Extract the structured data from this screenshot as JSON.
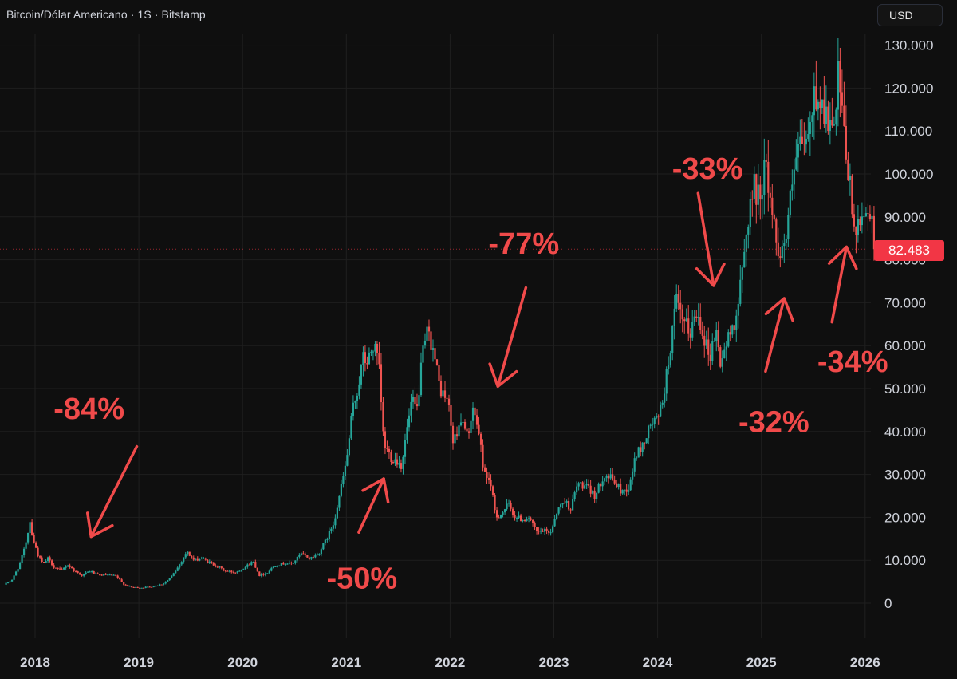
{
  "header": {
    "title": "Bitcoin/Dólar Americano · 1S · Bitstamp",
    "currency_button": "USD"
  },
  "price_tag": {
    "value_label": "82.483",
    "color": "#f23645"
  },
  "colors": {
    "background": "#0f0f0f",
    "up_candle": "#26a69a",
    "down_candle": "#ef5350",
    "annotation": "#f04a4a",
    "grid": "#1f1f1f"
  },
  "chart_data": {
    "type": "candlestick",
    "instrument": "Bitcoin/Dólar Americano",
    "interval": "1S",
    "exchange": "Bitstamp",
    "ylim": [
      -3500,
      138000
    ],
    "xlim": [
      2017.72,
      2026.3
    ],
    "y_ticks": [
      0,
      10000,
      20000,
      30000,
      40000,
      50000,
      60000,
      70000,
      80000,
      90000,
      100000,
      110000,
      120000,
      130000
    ],
    "y_tick_labels": [
      "0",
      "10.000",
      "20.000",
      "30.000",
      "40.000",
      "50.000",
      "60.000",
      "70.000",
      "80.000",
      "90.000",
      "100.000",
      "110.000",
      "120.000",
      "130.000"
    ],
    "x_ticks": [
      2018,
      2019,
      2020,
      2021,
      2022,
      2023,
      2024,
      2025,
      2026
    ],
    "x_tick_labels": [
      "2018",
      "2019",
      "2020",
      "2021",
      "2022",
      "2023",
      "2024",
      "2025",
      "2026"
    ],
    "grid": true,
    "last_price": 82483,
    "last_price_label": "82.483",
    "price_path": [
      [
        2017.72,
        4300
      ],
      [
        2017.8,
        5500
      ],
      [
        2017.87,
        9000
      ],
      [
        2017.92,
        13000
      ],
      [
        2017.97,
        19000
      ],
      [
        2018.0,
        15000
      ],
      [
        2018.05,
        11000
      ],
      [
        2018.1,
        9000
      ],
      [
        2018.14,
        10500
      ],
      [
        2018.2,
        8500
      ],
      [
        2018.27,
        7500
      ],
      [
        2018.33,
        9000
      ],
      [
        2018.4,
        7500
      ],
      [
        2018.47,
        6500
      ],
      [
        2018.55,
        7500
      ],
      [
        2018.62,
        6500
      ],
      [
        2018.7,
        6600
      ],
      [
        2018.8,
        6300
      ],
      [
        2018.87,
        4500
      ],
      [
        2018.95,
        3700
      ],
      [
        2019.05,
        3600
      ],
      [
        2019.15,
        3900
      ],
      [
        2019.25,
        4500
      ],
      [
        2019.33,
        6000
      ],
      [
        2019.4,
        8500
      ],
      [
        2019.48,
        12000
      ],
      [
        2019.55,
        10000
      ],
      [
        2019.62,
        10500
      ],
      [
        2019.7,
        9500
      ],
      [
        2019.78,
        8500
      ],
      [
        2019.85,
        7500
      ],
      [
        2019.95,
        7200
      ],
      [
        2020.05,
        8500
      ],
      [
        2020.12,
        9800
      ],
      [
        2020.18,
        6500
      ],
      [
        2020.25,
        7000
      ],
      [
        2020.33,
        8800
      ],
      [
        2020.42,
        9300
      ],
      [
        2020.5,
        9200
      ],
      [
        2020.58,
        11500
      ],
      [
        2020.67,
        10500
      ],
      [
        2020.75,
        11500
      ],
      [
        2020.83,
        15000
      ],
      [
        2020.9,
        19000
      ],
      [
        2020.96,
        26000
      ],
      [
        2021.02,
        33000
      ],
      [
        2021.08,
        45000
      ],
      [
        2021.13,
        50000
      ],
      [
        2021.18,
        57000
      ],
      [
        2021.22,
        56000
      ],
      [
        2021.28,
        60000
      ],
      [
        2021.33,
        56000
      ],
      [
        2021.38,
        37000
      ],
      [
        2021.45,
        34000
      ],
      [
        2021.52,
        33000
      ],
      [
        2021.55,
        32000
      ],
      [
        2021.6,
        40000
      ],
      [
        2021.65,
        47000
      ],
      [
        2021.7,
        45000
      ],
      [
        2021.75,
        57000
      ],
      [
        2021.8,
        63000
      ],
      [
        2021.85,
        60000
      ],
      [
        2021.92,
        50000
      ],
      [
        2022.0,
        47000
      ],
      [
        2022.05,
        37000
      ],
      [
        2022.12,
        43000
      ],
      [
        2022.18,
        39000
      ],
      [
        2022.25,
        45000
      ],
      [
        2022.3,
        39000
      ],
      [
        2022.35,
        30000
      ],
      [
        2022.4,
        29000
      ],
      [
        2022.46,
        20000
      ],
      [
        2022.52,
        21000
      ],
      [
        2022.58,
        23000
      ],
      [
        2022.65,
        20000
      ],
      [
        2022.72,
        19500
      ],
      [
        2022.78,
        20000
      ],
      [
        2022.85,
        16500
      ],
      [
        2022.92,
        16800
      ],
      [
        2022.99,
        16600
      ],
      [
        2023.04,
        21000
      ],
      [
        2023.12,
        24000
      ],
      [
        2023.18,
        22000
      ],
      [
        2023.25,
        28000
      ],
      [
        2023.33,
        27000
      ],
      [
        2023.42,
        25000
      ],
      [
        2023.5,
        30000
      ],
      [
        2023.58,
        29000
      ],
      [
        2023.67,
        26000
      ],
      [
        2023.75,
        27000
      ],
      [
        2023.8,
        34000
      ],
      [
        2023.88,
        37000
      ],
      [
        2023.96,
        42000
      ],
      [
        2024.03,
        43000
      ],
      [
        2024.1,
        52000
      ],
      [
        2024.17,
        65000
      ],
      [
        2024.2,
        70000
      ],
      [
        2024.25,
        66000
      ],
      [
        2024.33,
        63000
      ],
      [
        2024.4,
        68000
      ],
      [
        2024.45,
        64000
      ],
      [
        2024.52,
        57000
      ],
      [
        2024.58,
        64000
      ],
      [
        2024.62,
        56000
      ],
      [
        2024.68,
        60000
      ],
      [
        2024.75,
        65000
      ],
      [
        2024.8,
        70000
      ],
      [
        2024.85,
        80000
      ],
      [
        2024.9,
        92000
      ],
      [
        2024.95,
        97000
      ],
      [
        2025.0,
        94000
      ],
      [
        2025.05,
        102000
      ],
      [
        2025.1,
        96000
      ],
      [
        2025.15,
        86000
      ],
      [
        2025.2,
        82000
      ],
      [
        2025.25,
        84000
      ],
      [
        2025.3,
        94000
      ],
      [
        2025.36,
        104000
      ],
      [
        2025.42,
        107000
      ],
      [
        2025.48,
        108000
      ],
      [
        2025.52,
        118000
      ],
      [
        2025.58,
        118000
      ],
      [
        2025.62,
        115000
      ],
      [
        2025.68,
        111000
      ],
      [
        2025.72,
        109000
      ],
      [
        2025.76,
        123000
      ],
      [
        2025.8,
        112000
      ],
      [
        2025.84,
        104000
      ],
      [
        2025.88,
        95000
      ],
      [
        2025.92,
        86000
      ],
      [
        2025.96,
        87000
      ],
      [
        2026.0,
        91000
      ],
      [
        2026.04,
        93000
      ],
      [
        2026.08,
        89000
      ],
      [
        2026.1,
        82483
      ]
    ],
    "annotations": [
      {
        "label": "-84%",
        "x": 2018.52,
        "y": 45500,
        "arrow_from": [
          2018.98,
          36500
        ],
        "arrow_to": [
          2018.54,
          15500
        ]
      },
      {
        "label": "-50%",
        "x": 2021.15,
        "y": 6000,
        "arrow_from": [
          2021.12,
          16500
        ],
        "arrow_to": [
          2021.36,
          29000
        ]
      },
      {
        "label": "-77%",
        "x": 2022.71,
        "y": 84000,
        "arrow_from": [
          2022.73,
          73500
        ],
        "arrow_to": [
          2022.46,
          50500
        ]
      },
      {
        "label": "-33%",
        "x": 2024.48,
        "y": 101500,
        "arrow_from": [
          2024.39,
          95500
        ],
        "arrow_to": [
          2024.54,
          74000
        ]
      },
      {
        "label": "-32%",
        "x": 2025.12,
        "y": 42500,
        "arrow_from": [
          2025.04,
          54000
        ],
        "arrow_to": [
          2025.22,
          71000
        ]
      },
      {
        "label": "-34%",
        "x": 2025.88,
        "y": 56500,
        "arrow_from": [
          2025.68,
          65500
        ],
        "arrow_to": [
          2025.82,
          83000
        ]
      }
    ]
  }
}
